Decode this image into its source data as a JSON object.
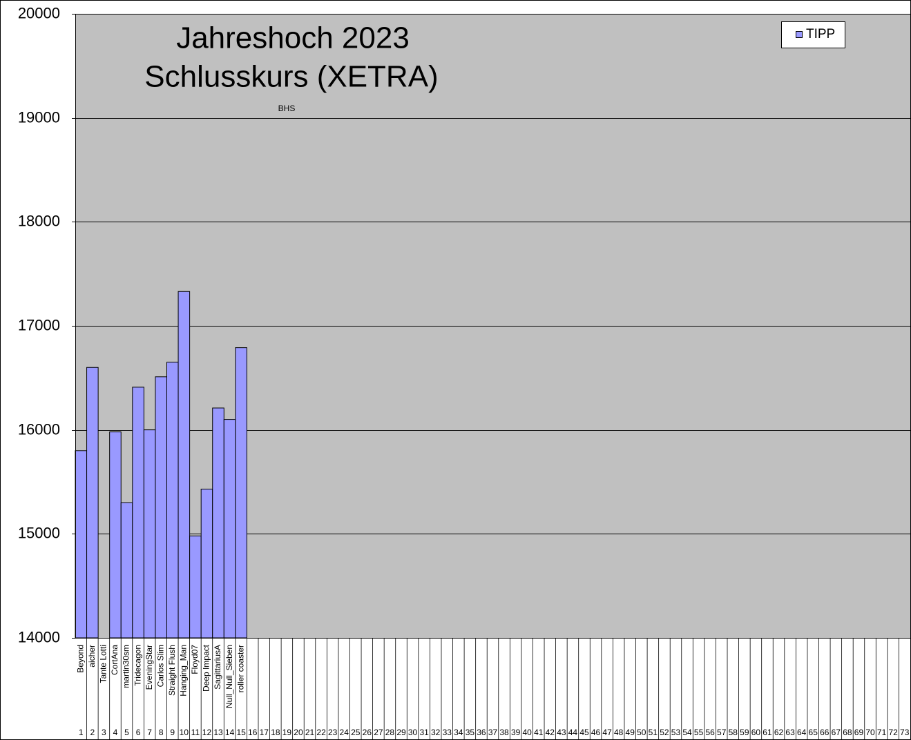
{
  "chart_data": {
    "type": "bar",
    "title": [
      "Jahreshoch 2023",
      "Schlusskurs (XETRA)"
    ],
    "annotation": "BHS",
    "categories": [
      "1",
      "2",
      "3",
      "4",
      "5",
      "6",
      "7",
      "8",
      "9",
      "10",
      "11",
      "12",
      "13",
      "14",
      "15",
      "16",
      "17",
      "18",
      "19",
      "20",
      "21",
      "22",
      "23",
      "24",
      "25",
      "26",
      "27",
      "28",
      "29",
      "30",
      "31",
      "32",
      "33",
      "34",
      "35",
      "36",
      "37",
      "38",
      "39",
      "40",
      "41",
      "42",
      "43",
      "44",
      "45",
      "46",
      "47",
      "48",
      "49",
      "50",
      "51",
      "52",
      "53",
      "54",
      "55",
      "56",
      "57",
      "58",
      "59",
      "60",
      "61",
      "62",
      "63",
      "64",
      "65",
      "66",
      "67",
      "68",
      "69",
      "70",
      "71",
      "72",
      "73"
    ],
    "names": [
      "Beyond",
      "aicher",
      "Tante Lotti",
      "CortAna",
      "martin30sm",
      "Tridecagon",
      "EveningStar",
      "Carlos Slim",
      "Straight Flush",
      "Hanging_Man",
      "Floyd07",
      "Deep Impact",
      "SagittariusA",
      "Null_Null_Sieben",
      "roller coaster",
      null,
      null,
      null,
      null,
      null,
      null,
      null,
      null,
      null,
      null,
      null,
      null,
      null,
      null,
      null,
      null,
      null,
      null,
      null,
      null,
      null,
      null,
      null,
      null,
      null,
      null,
      null,
      null,
      null,
      null,
      null,
      null,
      null,
      null,
      null,
      null,
      null,
      null,
      null,
      null,
      null,
      null,
      null,
      null,
      null,
      null,
      null,
      null,
      null,
      null,
      null,
      null,
      null,
      null,
      null,
      null,
      null,
      null
    ],
    "series": [
      {
        "name": "TIPP",
        "color": "#9999ff",
        "values": [
          15800,
          16600,
          null,
          15980,
          15300,
          16410,
          16000,
          16510,
          16650,
          17330,
          14980,
          15430,
          16210,
          16100,
          16790,
          null,
          null,
          null,
          null,
          null,
          null,
          null,
          null,
          null,
          null,
          null,
          null,
          null,
          null,
          null,
          null,
          null,
          null,
          null,
          null,
          null,
          null,
          null,
          null,
          null,
          null,
          null,
          null,
          null,
          null,
          null,
          null,
          null,
          null,
          null,
          null,
          null,
          null,
          null,
          null,
          null,
          null,
          null,
          null,
          null,
          null,
          null,
          null,
          null,
          null,
          null,
          null,
          null,
          null,
          null,
          null,
          null,
          null
        ]
      }
    ],
    "ylim": [
      14000,
      20000
    ],
    "yticks": [
      14000,
      15000,
      16000,
      17000,
      18000,
      19000,
      20000
    ],
    "grid": true,
    "legend": "top-right"
  }
}
